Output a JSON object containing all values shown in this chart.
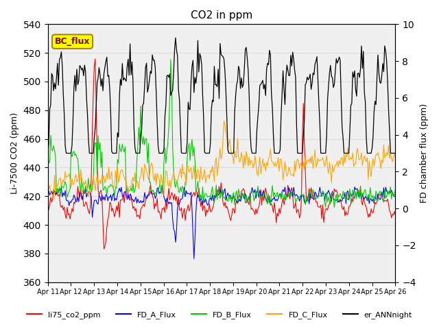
{
  "title": "CO2 in ppm",
  "ylabel_left": "Li-7500 CO2 (ppm)",
  "ylabel_right": "FD chamber flux (ppm)",
  "ylim_left": [
    360,
    540
  ],
  "ylim_right": [
    -4,
    10
  ],
  "yticks_left": [
    360,
    380,
    400,
    420,
    440,
    460,
    480,
    500,
    520,
    540
  ],
  "yticks_right": [
    -4,
    -2,
    0,
    2,
    4,
    6,
    8,
    10
  ],
  "xticklabels": [
    "Apr 11",
    "Apr 12",
    "Apr 13",
    "Apr 14",
    "Apr 15",
    "Apr 16",
    "Apr 17",
    "Apr 18",
    "Apr 19",
    "Apr 20",
    "Apr 21",
    "Apr 22",
    "Apr 23",
    "Apr 24",
    "Apr 25",
    "Apr 26"
  ],
  "legend_labels": [
    "li75_co2_ppm",
    "FD_A_Flux",
    "FD_B_Flux",
    "FD_C_Flux",
    "er_ANNnight"
  ],
  "legend_colors": [
    "#ff0000",
    "#0000ff",
    "#00cc00",
    "#ffa500",
    "#000000"
  ],
  "box_label": "BC_flux",
  "box_color": "#ffff00",
  "box_edge_color": "#aa8800",
  "grid_color": "#dddddd",
  "background_color": "#f0f0f0",
  "plot_bg_color": "#ffffff",
  "n_points": 360,
  "seed": 42
}
